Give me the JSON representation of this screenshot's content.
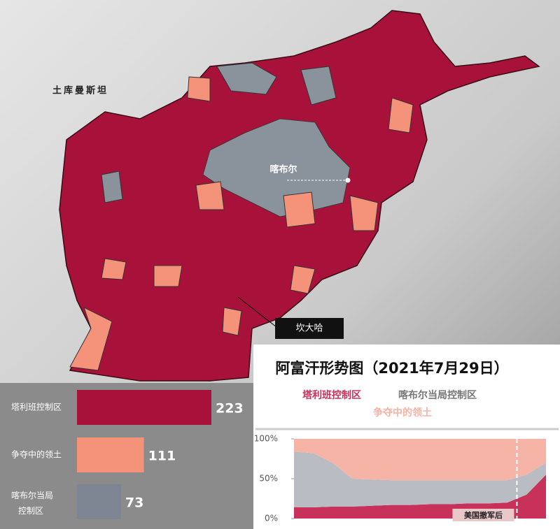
{
  "map": {
    "labels": [
      "土库曼斯坦",
      "喀布尔",
      "坎大哈"
    ]
  },
  "title": "阿富汗形势图（2021年7月29日）",
  "chart_data": [
    {
      "type": "hbar",
      "categories": [
        "塔利班控制区",
        "争夺中的领土",
        "喀布尔当局控制区"
      ],
      "values": [
        223,
        111,
        73
      ],
      "colors": [
        "#a8123a",
        "#f4927a",
        "#7c8591"
      ]
    },
    {
      "type": "area",
      "stacked": true,
      "categories": [
        null,
        null,
        null,
        null,
        null,
        null,
        null,
        null,
        null,
        null,
        null,
        null,
        null,
        null
      ],
      "series": [
        {
          "name": "塔利班控制区",
          "color": "#c8325a",
          "values": [
            14,
            14,
            15,
            15,
            16,
            17,
            17,
            18,
            18,
            19,
            19,
            20,
            30,
            55
          ]
        },
        {
          "name": "喀布尔当局控制区",
          "color": "#b9bcc2",
          "values": [
            70,
            68,
            55,
            35,
            33,
            31,
            31,
            30,
            30,
            29,
            29,
            28,
            25,
            15
          ]
        },
        {
          "name": "争夺中的领土",
          "color": "#f6b4a6",
          "values": [
            16,
            18,
            30,
            50,
            51,
            52,
            52,
            52,
            52,
            52,
            52,
            52,
            45,
            30
          ]
        }
      ],
      "ylim": [
        0,
        100
      ],
      "yticks": [
        {
          "value": 0,
          "label": "0%"
        },
        {
          "value": 50,
          "label": "50%"
        },
        {
          "value": 100,
          "label": "100%"
        }
      ],
      "annotation": "美国撤军后"
    }
  ]
}
